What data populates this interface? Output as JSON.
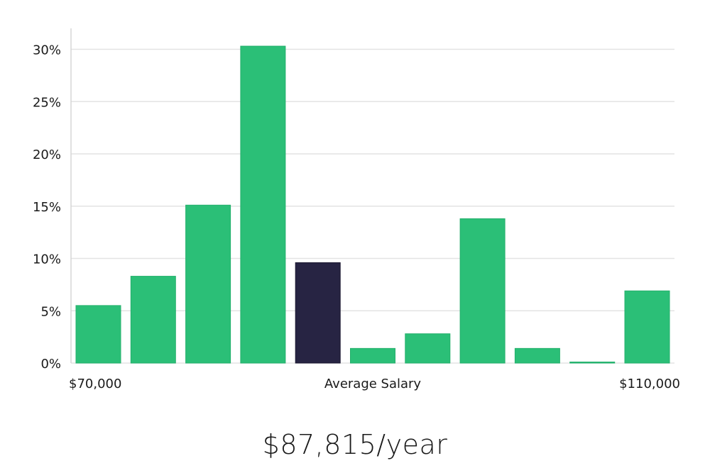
{
  "chart_data": {
    "type": "bar",
    "title": "",
    "xlabel": "Average Salary",
    "ylabel": "",
    "x_start_label": "$70,000",
    "x_end_label": "$110,000",
    "ylim": [
      0,
      32
    ],
    "yticks": [
      0,
      5,
      10,
      15,
      20,
      25,
      30
    ],
    "ytick_labels": [
      "0%",
      "5%",
      "10%",
      "15%",
      "20%",
      "25%",
      "30%"
    ],
    "values": [
      5.5,
      8.3,
      15.1,
      30.3,
      9.6,
      1.4,
      2.8,
      13.8,
      1.4,
      0.1,
      6.9
    ],
    "highlight_index": 4,
    "grid": true,
    "colors": {
      "bar": "#2bbf77",
      "highlight": "#272443",
      "grid": "#e3e3e3",
      "axis": "#d6d6d6"
    }
  },
  "summary": {
    "average_salary": "$87,815/year"
  }
}
